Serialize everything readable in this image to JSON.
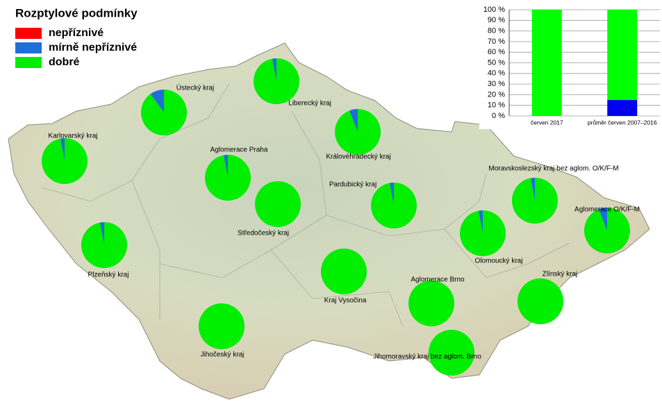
{
  "title": "Rozptylové podmínky",
  "legend": [
    {
      "label": "nepříznivé",
      "color": "#ff0000"
    },
    {
      "label": "mírně nepříznivé",
      "color": "#1e6fd9"
    },
    {
      "label": "dobré",
      "color": "#00ee00"
    }
  ],
  "regions": [
    {
      "name": "Karlovarský kraj",
      "values": [
        0,
        3,
        97
      ]
    },
    {
      "name": "Ústecký kraj",
      "values": [
        0,
        10,
        90
      ]
    },
    {
      "name": "Liberecký kraj",
      "values": [
        0,
        3,
        97
      ]
    },
    {
      "name": "Královéhradecký kraj",
      "values": [
        0,
        6,
        94
      ]
    },
    {
      "name": "Aglomerace Praha",
      "values": [
        0,
        3,
        97
      ]
    },
    {
      "name": "Středočeský kraj",
      "values": [
        0,
        0,
        100
      ]
    },
    {
      "name": "Pardubický kraj",
      "values": [
        0,
        3,
        97
      ]
    },
    {
      "name": "Plzeňský kraj",
      "values": [
        0,
        3,
        97
      ]
    },
    {
      "name": "Kraj Vysočina",
      "values": [
        0,
        0,
        100
      ]
    },
    {
      "name": "Olomoucký kraj",
      "values": [
        0,
        3,
        97
      ]
    },
    {
      "name": "Moravskoslezský kraj bez aglom. O/K/F-M",
      "values": [
        0,
        3,
        97
      ]
    },
    {
      "name": "Aglomerace O/K/F-M",
      "values": [
        0,
        6,
        94
      ]
    },
    {
      "name": "Jihočeský kraj",
      "values": [
        0,
        0,
        100
      ]
    },
    {
      "name": "Aglomerace Brno",
      "values": [
        0,
        0,
        100
      ]
    },
    {
      "name": "Zlínský kraj",
      "values": [
        0,
        0,
        100
      ]
    },
    {
      "name": "Jihomoravský kraj bez aglom. Brno",
      "values": [
        0,
        0,
        100
      ]
    }
  ],
  "chart_data": {
    "type": "bar",
    "stacked": true,
    "categories": [
      "červen 2017",
      "průměr červen 2007–2016"
    ],
    "series": [
      {
        "color": "#ff0000",
        "values": [
          0,
          0
        ]
      },
      {
        "color": "#0000ee",
        "values": [
          0,
          15
        ]
      },
      {
        "color": "#00ff00",
        "values": [
          100,
          85
        ]
      }
    ],
    "ylim": [
      0,
      100
    ],
    "yticks": [
      {
        "value": 0,
        "label": "0 %"
      },
      {
        "value": 10,
        "label": "10 %"
      },
      {
        "value": 20,
        "label": "20 %"
      },
      {
        "value": 30,
        "label": "30 %"
      },
      {
        "value": 40,
        "label": "40 %"
      },
      {
        "value": 50,
        "label": "50 %"
      },
      {
        "value": 60,
        "label": "60 %"
      },
      {
        "value": 70,
        "label": "70 %"
      },
      {
        "value": 80,
        "label": "80 %"
      },
      {
        "value": 90,
        "label": "90 %"
      },
      {
        "value": 100,
        "label": "100 %"
      }
    ],
    "grid": true
  }
}
